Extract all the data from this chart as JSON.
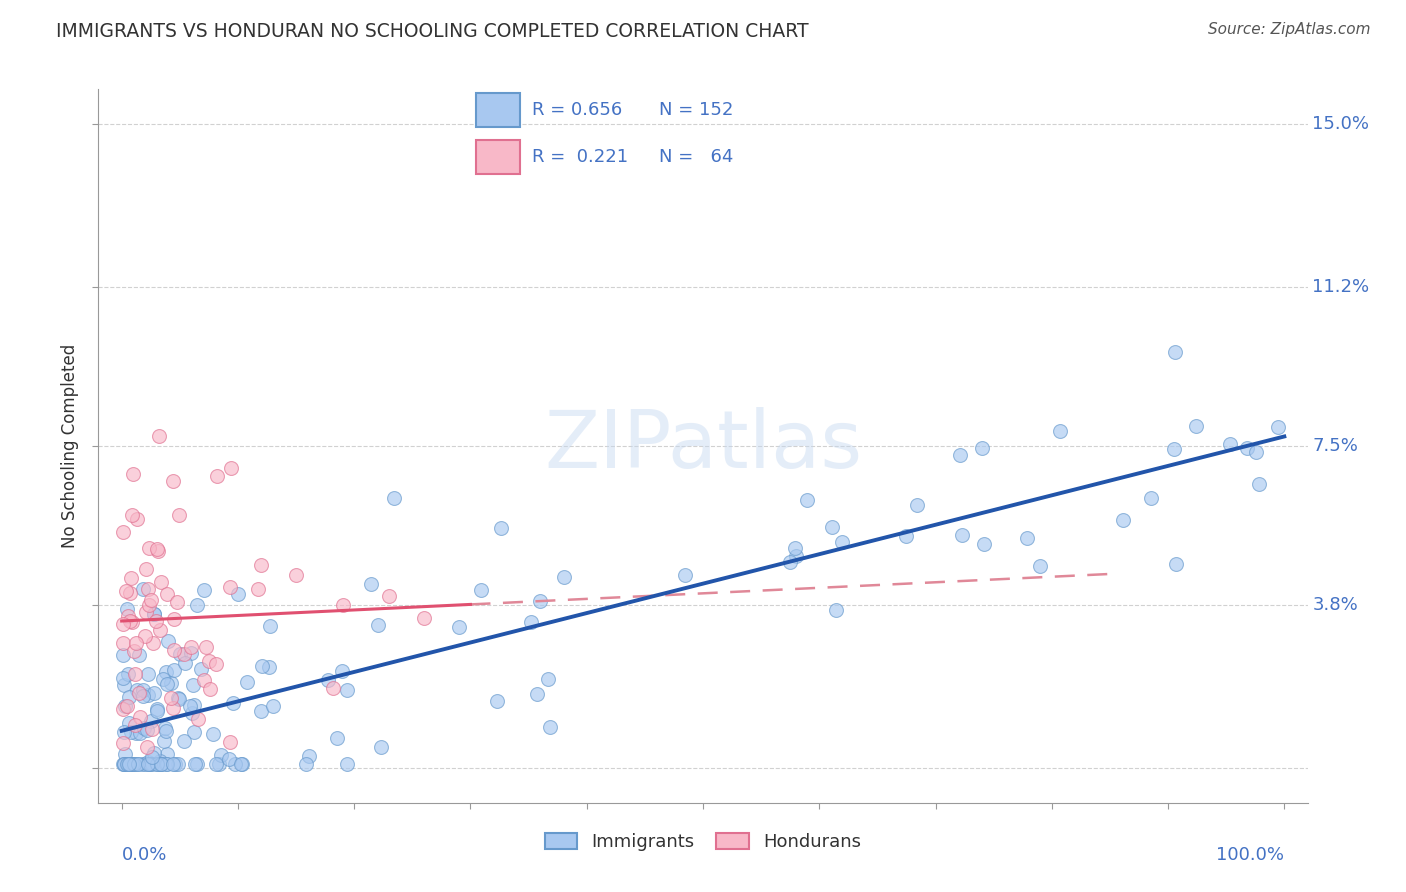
{
  "title": "IMMIGRANTS VS HONDURAN NO SCHOOLING COMPLETED CORRELATION CHART",
  "source": "Source: ZipAtlas.com",
  "ylabel": "No Schooling Completed",
  "xlim": [
    0.0,
    1.0
  ],
  "ylim": [
    0.0,
    0.15
  ],
  "ytick_vals": [
    0.0,
    0.038,
    0.075,
    0.112,
    0.15
  ],
  "ytick_labels": [
    "",
    "3.8%",
    "7.5%",
    "11.2%",
    "15.0%"
  ],
  "immigrants_color": "#a8c8f0",
  "immigrants_edge": "#6699cc",
  "hondurans_color": "#f8b8c8",
  "hondurans_edge": "#e07090",
  "trendline_imm_color": "#2255aa",
  "trendline_hon_solid_color": "#e05070",
  "trendline_hon_dash_color": "#e08898",
  "watermark": "ZIPatlas",
  "background_color": "#ffffff",
  "grid_color": "#cccccc",
  "title_color": "#333333",
  "axis_label_color": "#333333",
  "tick_label_color": "#4472c4",
  "legend_label_color": "#4472c4",
  "source_color": "#555555"
}
